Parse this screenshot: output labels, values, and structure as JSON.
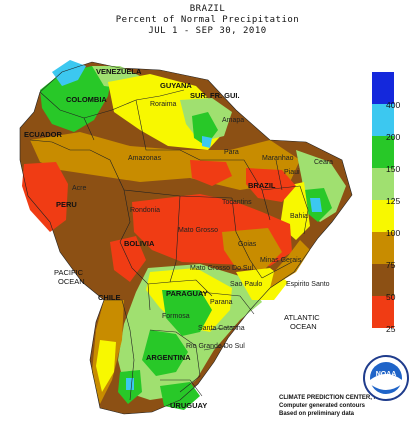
{
  "header": {
    "line1": "BRAZIL",
    "line2": "Percent of Normal Precipitation",
    "line3": "JUL  1 - SEP 30, 2010"
  },
  "legend": {
    "values": [
      "400",
      "200",
      "150",
      "125",
      "100",
      "75",
      "50",
      "25"
    ],
    "colors": [
      "#1428dc",
      "#3cc8f0",
      "#28c828",
      "#a0e070",
      "#f8f800",
      "#c88c00",
      "#8c5014",
      "#f03c14"
    ]
  },
  "map": {
    "labels": {
      "venezuela": "VENEZUELA",
      "colombia": "COLOMBIA",
      "guyana": "GUYANA",
      "suriname": "SUR.",
      "fr_guiana": "FR. GUI.",
      "ecuador": "ECUADOR",
      "peru": "PERU",
      "bolivia": "BOLIVIA",
      "brazil": "BRAZIL",
      "chile": "CHILE",
      "paraguay": "PARAGUAY",
      "argentina": "ARGENTINA",
      "uruguay": "URUGUAY",
      "amazonas": "Amazonas",
      "para": "Para",
      "acre": "Acre",
      "rondonia": "Rondonia",
      "mato_grosso": "Mato Grosso",
      "goias": "Goias",
      "bahia": "Bahia",
      "minas_gerais": "Minas Gerais",
      "sao_paulo": "Sao Paulo",
      "rio_grande_do_sul": "Rio Grande Do Sul",
      "santa_catarina": "Santa Catarina",
      "parana": "Parana",
      "mato_grosso_sul": "Mato Grosso Do Sul",
      "roraima": "Roraima",
      "amapa": "Amapa",
      "maranhao": "Maranhao",
      "piaui": "Piaui",
      "ceara": "Ceara",
      "tocantins": "Tocantins",
      "espirito_santo": "Espirito Santo",
      "formosa": "Formosa"
    },
    "oceans": {
      "pacific_1": "PACIFIC",
      "pacific_2": "OCEAN",
      "atlantic_1": "ATLANTIC",
      "atlantic_2": "OCEAN"
    }
  },
  "credits": {
    "line1": "CLIMATE PREDICTION CENTER, NOAA",
    "line2": "Computer generated contours",
    "line3": "Based on preliminary data"
  },
  "logo": {
    "text": "NOAA"
  }
}
